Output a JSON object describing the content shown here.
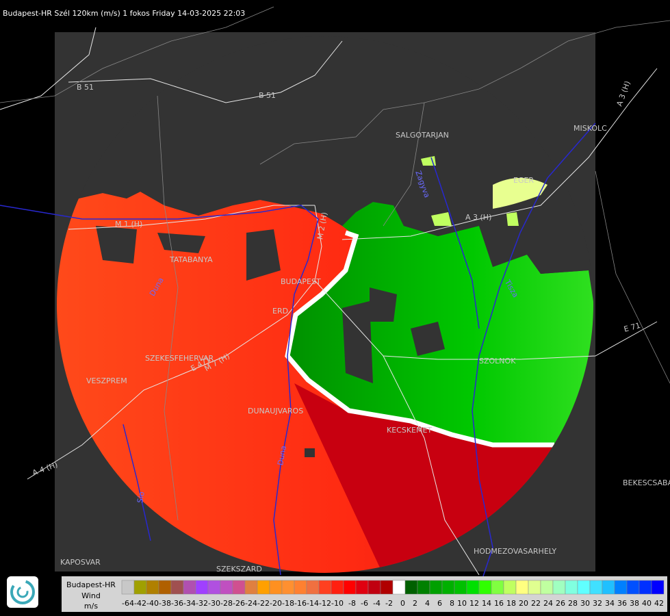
{
  "header": {
    "title": "Budapest-HR Szél 120km (m/s) 1 fokos Friday 14-03-2025 22:03"
  },
  "map": {
    "places": [
      "SALGOTARJAN",
      "MISKOLC",
      "EGER",
      "TATABANYA",
      "BUDAPEST",
      "ERD",
      "SZEKESFEHERVAR",
      "VESZPREM",
      "DUNAUJVAROS",
      "KECSKEMET",
      "SZOLNOK",
      "HODMEZOVASARHELY",
      "KAPOSVAR",
      "SZEKSZARD",
      "BEKESCSABA"
    ],
    "roads": [
      "B 51",
      "B 51",
      "M 1 (H)",
      "M 2 (H)",
      "A 3 (H)",
      "A 3 (H)",
      "A 4 (H)",
      "E 71",
      "E 471",
      "M 7 (H)"
    ],
    "rivers": [
      "Duna",
      "Duna",
      "Tisza",
      "Zagyva",
      "Sio"
    ]
  },
  "legend": {
    "station": "Budapest-HR",
    "quantity": "Wind",
    "unit": "m/s",
    "steps": [
      -64,
      -42,
      -40,
      -38,
      -36,
      -34,
      -32,
      -30,
      -28,
      -26,
      -24,
      -22,
      -20,
      -18,
      -16,
      -14,
      -12,
      -10,
      -8,
      -6,
      -4,
      -2,
      0,
      2,
      4,
      6,
      8,
      10,
      12,
      14,
      16,
      18,
      20,
      22,
      24,
      26,
      28,
      30,
      32,
      34,
      36,
      38,
      40,
      42
    ],
    "colors": [
      "#c8c8c8",
      "#a0a000",
      "#b08000",
      "#b06000",
      "#a05050",
      "#b050b0",
      "#a040ff",
      "#b050e0",
      "#c050c0",
      "#d05090",
      "#e08040",
      "#ffa000",
      "#ff9020",
      "#ff9030",
      "#ff8030",
      "#f07040",
      "#ff4020",
      "#ff2010",
      "#ff0000",
      "#e00010",
      "#c00010",
      "#b00000",
      "#ffffff",
      "#006000",
      "#008000",
      "#00a000",
      "#00b000",
      "#00c000",
      "#00e000",
      "#30ff00",
      "#80ff40",
      "#c0ff60",
      "#ffff80",
      "#e0ff90",
      "#c0ffa0",
      "#a0ffc0",
      "#80ffe0",
      "#60ffff",
      "#40e0ff",
      "#20c0ff",
      "#0080ff",
      "#0050ff",
      "#0030ff",
      "#0000ff"
    ]
  }
}
